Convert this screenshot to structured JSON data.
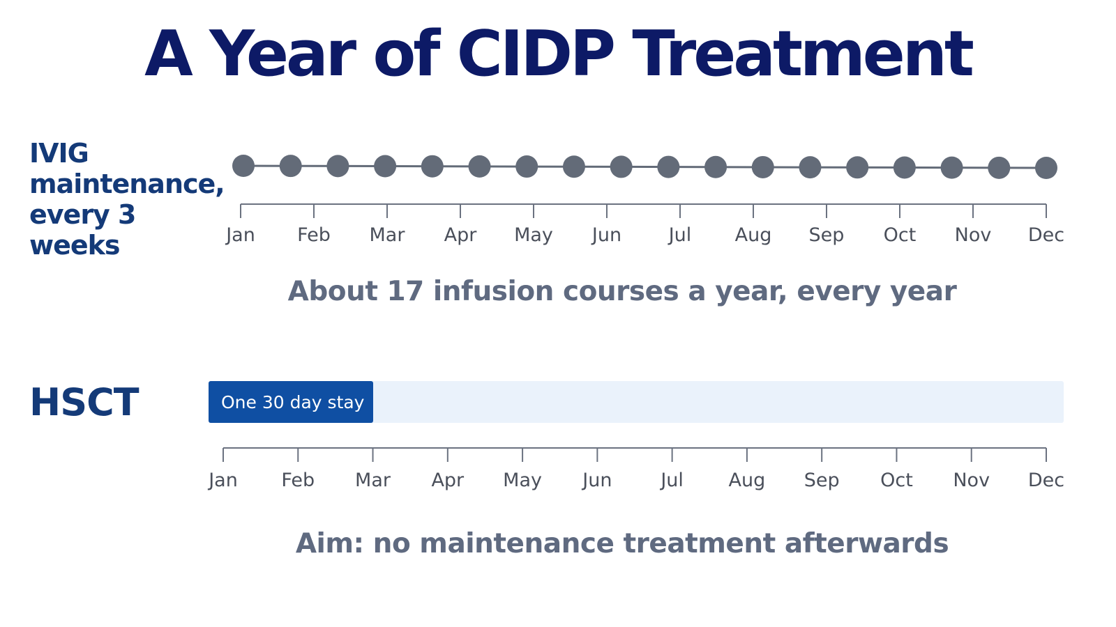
{
  "title": "A Year of CIDP Treatment",
  "colors": {
    "title": "#0d1a66",
    "label": "#143a78",
    "caption": "#5f6a80",
    "dot": "#636b78",
    "axis": "#6b7280",
    "tick_text": "#4a4f5a",
    "stay_bar": "#0f4fa3",
    "stay_track": "#eaf2fb"
  },
  "months": [
    "Jan",
    "Feb",
    "Mar",
    "Apr",
    "May",
    "Jun",
    "Jul",
    "Aug",
    "Sep",
    "Oct",
    "Nov",
    "Dec"
  ],
  "ivig": {
    "label": "IVIG maintenance, every 3 weeks",
    "infusion_count": 18,
    "caption": "About 17 infusion courses a year, every year"
  },
  "hsct": {
    "label": "HSCT",
    "stay_label": "One 30 day stay",
    "stay_months": 2,
    "caption": "Aim: no maintenance treatment afterwards"
  }
}
